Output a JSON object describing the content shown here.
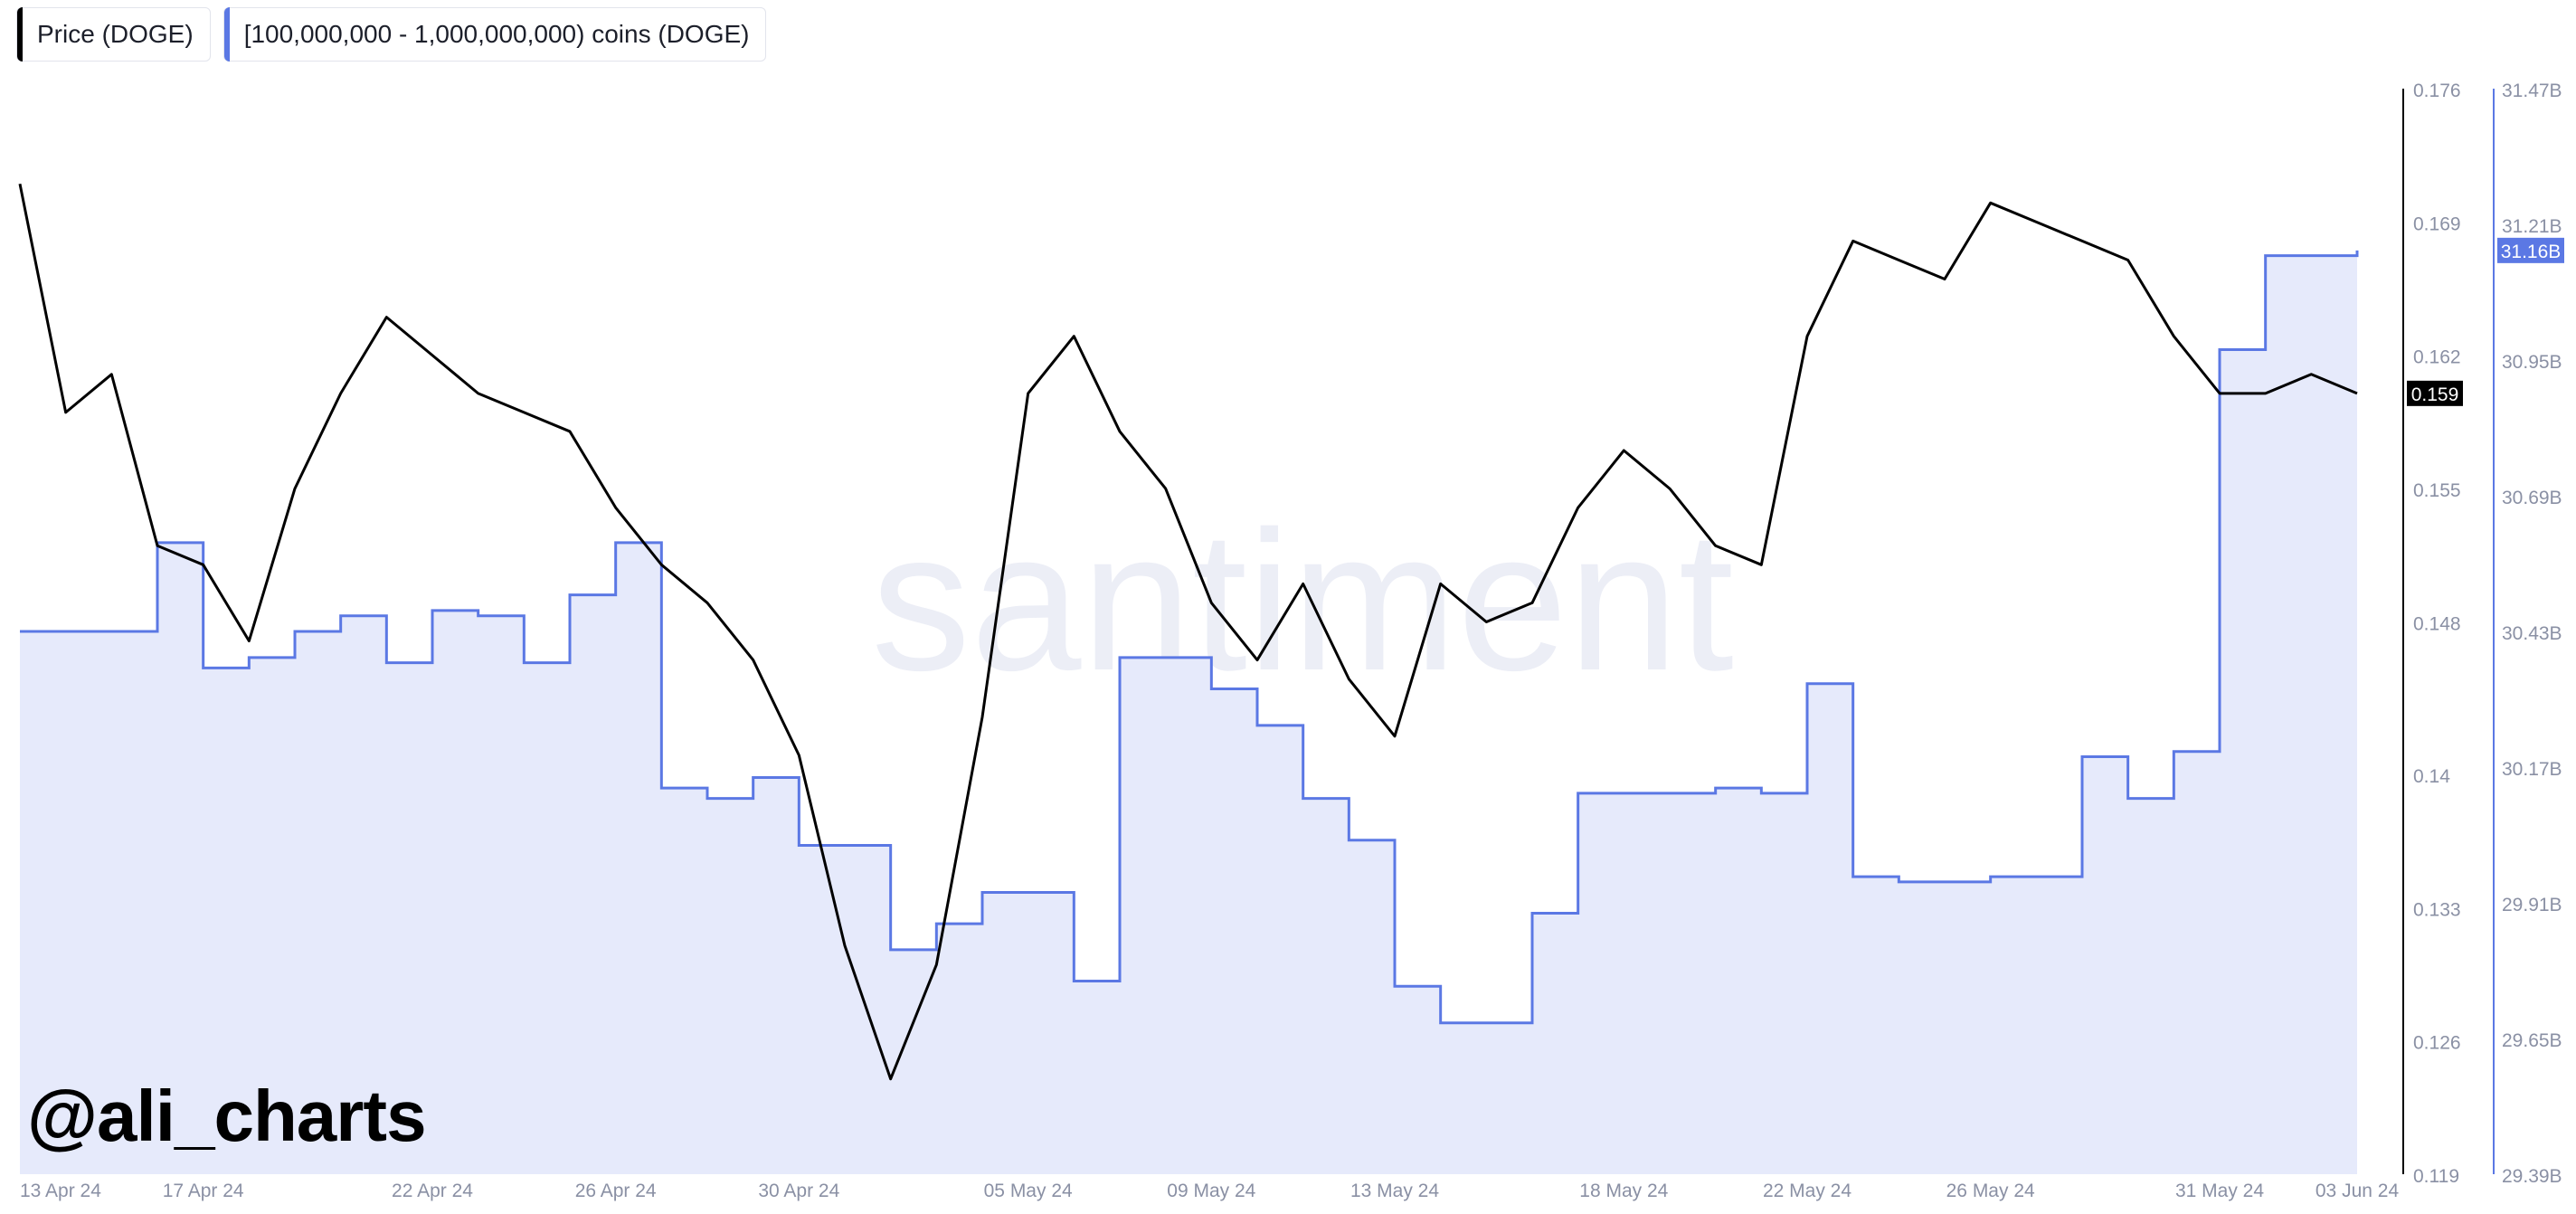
{
  "watermark": {
    "brand": "santiment",
    "handle": "@ali_charts"
  },
  "colors": {
    "price": "#000000",
    "holdings": "#5b78e4",
    "holdings_fill": "#e6eafb",
    "axis_text": "#8a90a4",
    "watermark_text": "#eceef6"
  },
  "chart_data": {
    "type": "line",
    "legend": [
      {
        "label": "Price (DOGE)",
        "color": "#000000"
      },
      {
        "label": "[100,000,000 - 1,000,000,000) coins (DOGE)",
        "color": "#5b78e4"
      }
    ],
    "x_axis": {
      "range": [
        "2024-04-13",
        "2024-06-03"
      ],
      "tick_labels": [
        "13 Apr 24",
        "17 Apr 24",
        "22 Apr 24",
        "26 Apr 24",
        "30 Apr 24",
        "05 May 24",
        "09 May 24",
        "13 May 24",
        "18 May 24",
        "22 May 24",
        "26 May 24",
        "31 May 24",
        "03 Jun 24"
      ],
      "tick_dates": [
        "2024-04-13",
        "2024-04-17",
        "2024-04-22",
        "2024-04-26",
        "2024-04-30",
        "2024-05-05",
        "2024-05-09",
        "2024-05-13",
        "2024-05-18",
        "2024-05-22",
        "2024-05-26",
        "2024-05-31",
        "2024-06-03"
      ]
    },
    "y_axis_price": {
      "range": [
        0.119,
        0.176
      ],
      "tick_labels": [
        "0.176",
        "0.169",
        "0.162",
        "0.155",
        "0.148",
        "0.14",
        "0.133",
        "0.126",
        "0.119"
      ],
      "last_value_label": "0.159"
    },
    "y_axis_holdings": {
      "range": [
        29.39,
        31.47
      ],
      "unit": "B",
      "tick_labels": [
        "31.47B",
        "31.21B",
        "30.95B",
        "30.69B",
        "30.43B",
        "30.17B",
        "29.91B",
        "29.65B",
        "29.39B"
      ],
      "last_value_label": "31.16B"
    },
    "series": [
      {
        "name": "Price (DOGE)",
        "axis": "price",
        "x": [
          "2024-04-13",
          "2024-04-14",
          "2024-04-15",
          "2024-04-16",
          "2024-04-17",
          "2024-04-18",
          "2024-04-19",
          "2024-04-20",
          "2024-04-21",
          "2024-04-22",
          "2024-04-23",
          "2024-04-24",
          "2024-04-25",
          "2024-04-26",
          "2024-04-27",
          "2024-04-28",
          "2024-04-29",
          "2024-04-30",
          "2024-05-01",
          "2024-05-02",
          "2024-05-03",
          "2024-05-04",
          "2024-05-05",
          "2024-05-06",
          "2024-05-07",
          "2024-05-08",
          "2024-05-09",
          "2024-05-10",
          "2024-05-11",
          "2024-05-12",
          "2024-05-13",
          "2024-05-14",
          "2024-05-15",
          "2024-05-16",
          "2024-05-17",
          "2024-05-18",
          "2024-05-19",
          "2024-05-20",
          "2024-05-21",
          "2024-05-22",
          "2024-05-23",
          "2024-05-24",
          "2024-05-25",
          "2024-05-26",
          "2024-05-27",
          "2024-05-28",
          "2024-05-29",
          "2024-05-30",
          "2024-05-31",
          "2024-06-01",
          "2024-06-02",
          "2024-06-03"
        ],
        "values": [
          0.171,
          0.159,
          0.161,
          0.152,
          0.151,
          0.147,
          0.155,
          0.16,
          0.164,
          0.162,
          0.16,
          0.159,
          0.158,
          0.154,
          0.151,
          0.149,
          0.146,
          0.141,
          0.131,
          0.124,
          0.13,
          0.143,
          0.16,
          0.163,
          0.158,
          0.155,
          0.149,
          0.146,
          0.15,
          0.145,
          0.142,
          0.15,
          0.148,
          0.149,
          0.154,
          0.157,
          0.155,
          0.152,
          0.151,
          0.163,
          0.168,
          0.167,
          0.166,
          0.17,
          0.169,
          0.168,
          0.167,
          0.163,
          0.16,
          0.16,
          0.161,
          0.16
        ]
      },
      {
        "name": "[100,000,000 - 1,000,000,000) coins (DOGE)",
        "axis": "holdings",
        "x": [
          "2024-04-13",
          "2024-04-14",
          "2024-04-15",
          "2024-04-16",
          "2024-04-17",
          "2024-04-18",
          "2024-04-19",
          "2024-04-20",
          "2024-04-21",
          "2024-04-22",
          "2024-04-23",
          "2024-04-24",
          "2024-04-25",
          "2024-04-26",
          "2024-04-27",
          "2024-04-28",
          "2024-04-29",
          "2024-04-30",
          "2024-05-01",
          "2024-05-02",
          "2024-05-03",
          "2024-05-04",
          "2024-05-05",
          "2024-05-06",
          "2024-05-07",
          "2024-05-08",
          "2024-05-09",
          "2024-05-10",
          "2024-05-11",
          "2024-05-12",
          "2024-05-13",
          "2024-05-14",
          "2024-05-15",
          "2024-05-16",
          "2024-05-17",
          "2024-05-18",
          "2024-05-19",
          "2024-05-20",
          "2024-05-21",
          "2024-05-22",
          "2024-05-23",
          "2024-05-24",
          "2024-05-25",
          "2024-05-26",
          "2024-05-27",
          "2024-05-28",
          "2024-05-29",
          "2024-05-30",
          "2024-05-31",
          "2024-06-01",
          "2024-06-02",
          "2024-06-03"
        ],
        "values": [
          30.43,
          30.43,
          30.43,
          30.6,
          30.36,
          30.38,
          30.43,
          30.46,
          30.37,
          30.47,
          30.46,
          30.37,
          30.5,
          30.6,
          30.13,
          30.11,
          30.15,
          30.02,
          30.02,
          29.82,
          29.87,
          29.93,
          29.93,
          29.76,
          30.38,
          30.38,
          30.32,
          30.25,
          30.11,
          30.03,
          29.75,
          29.68,
          29.68,
          29.89,
          30.12,
          30.12,
          30.12,
          30.13,
          30.12,
          30.33,
          29.96,
          29.95,
          29.95,
          29.96,
          29.96,
          30.19,
          30.11,
          30.2,
          30.97,
          31.15,
          31.15,
          31.16
        ]
      }
    ]
  }
}
